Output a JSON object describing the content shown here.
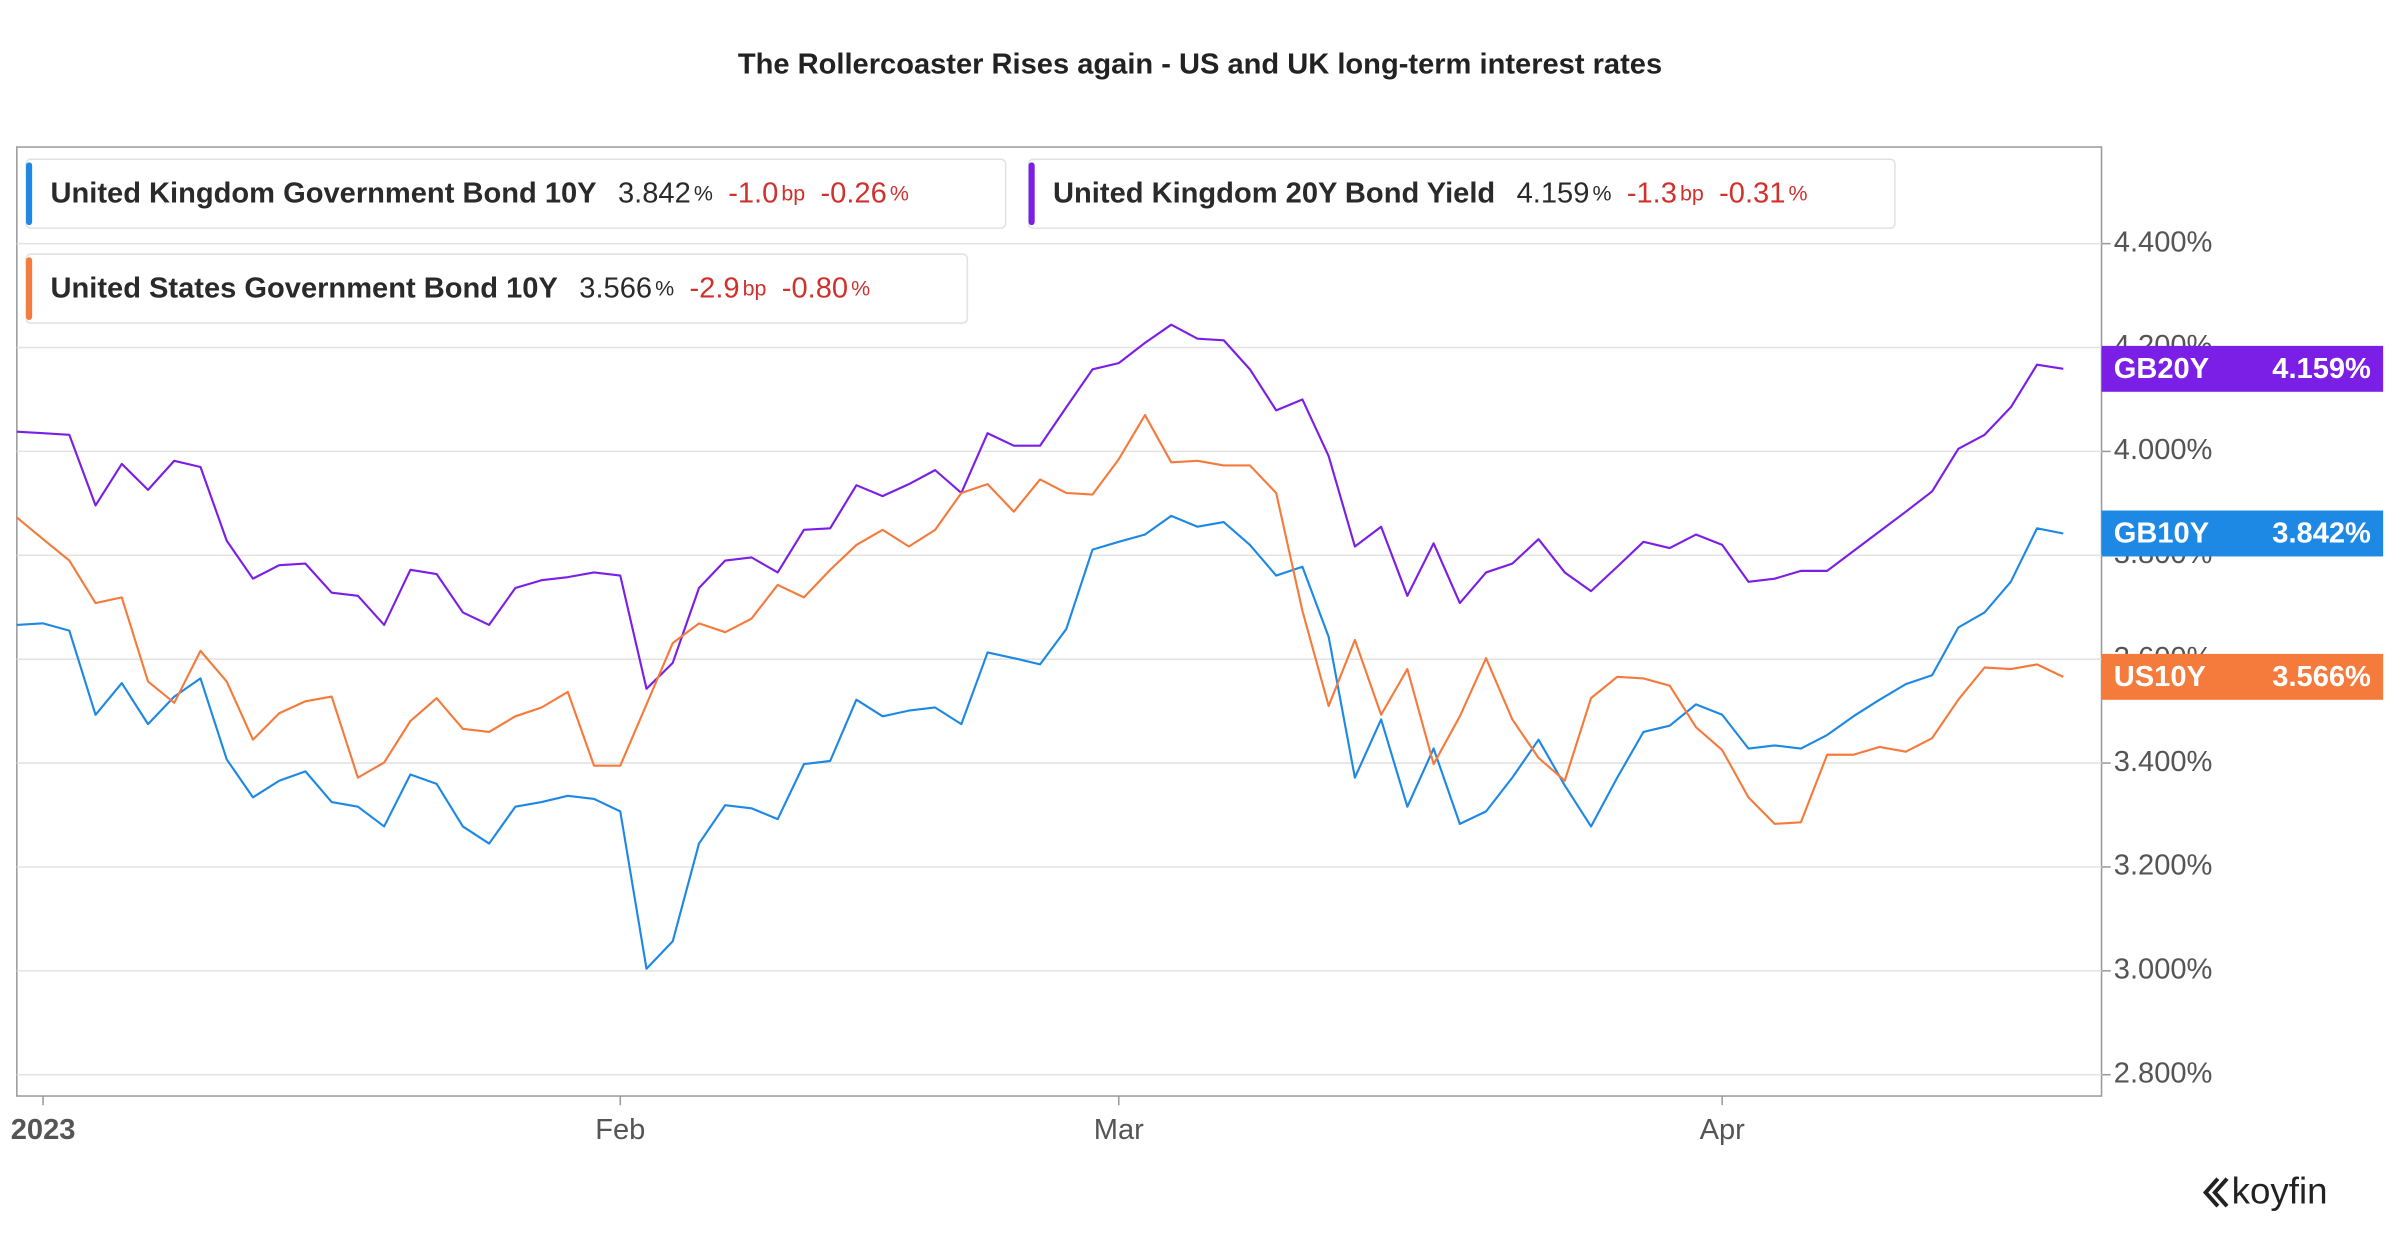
{
  "chart_data": {
    "type": "line",
    "title": "The Rollercoaster Rises again - US and UK long-term interest rates",
    "logo": "koyfin",
    "categories": [
      null,
      "2023",
      null,
      null,
      null,
      null,
      null,
      null,
      null,
      null,
      null,
      null,
      null,
      null,
      null,
      null,
      null,
      null,
      null,
      null,
      null,
      null,
      null,
      "Feb",
      null,
      null,
      null,
      null,
      null,
      null,
      null,
      null,
      null,
      null,
      null,
      null,
      null,
      null,
      null,
      null,
      null,
      null,
      "Mar",
      null,
      null,
      null,
      null,
      null,
      null,
      null,
      null,
      null,
      null,
      null,
      null,
      null,
      null,
      null,
      null,
      null,
      null,
      null,
      null,
      null,
      null,
      "Apr",
      null,
      null,
      null,
      null,
      null,
      null,
      null,
      null,
      null,
      null,
      null,
      null,
      null
    ],
    "ylim": [
      2.759,
      4.586
    ],
    "yticks": [
      {
        "value": 2.8,
        "label": "2.800%"
      },
      {
        "value": 3.0,
        "label": "3.000%"
      },
      {
        "value": 3.2,
        "label": "3.200%"
      },
      {
        "value": 3.4,
        "label": "3.400%"
      },
      {
        "value": 3.6,
        "label": "3.600%"
      },
      {
        "value": 3.8,
        "label": "3.800%"
      },
      {
        "value": 4.0,
        "label": "4.000%"
      },
      {
        "value": 4.2,
        "label": "4.200%"
      },
      {
        "value": 4.4,
        "label": "4.400%"
      }
    ],
    "grid": true,
    "series": [
      {
        "name": "United Kingdom Government Bond 10Y",
        "ticker": "GB10Y",
        "color": "#1e88e5",
        "last_label": "3.842%",
        "legend": {
          "last": "3.842",
          "last_unit": "%",
          "change": "-1.0",
          "change_unit": "bp",
          "change_pct": "-0.26",
          "change_pct_unit": "%"
        },
        "values": [
          3.666,
          3.669,
          3.655,
          3.493,
          3.554,
          3.475,
          3.528,
          3.563,
          3.407,
          3.334,
          3.366,
          3.384,
          3.325,
          3.316,
          3.278,
          3.378,
          3.36,
          3.278,
          3.245,
          3.316,
          3.325,
          3.337,
          3.331,
          3.307,
          3.004,
          3.057,
          3.245,
          3.319,
          3.313,
          3.292,
          3.398,
          3.404,
          3.522,
          3.49,
          3.501,
          3.507,
          3.475,
          3.613,
          3.602,
          3.59,
          3.658,
          3.811,
          3.826,
          3.84,
          3.876,
          3.855,
          3.864,
          3.82,
          3.761,
          3.778,
          3.643,
          3.372,
          3.484,
          3.316,
          3.428,
          3.283,
          3.307,
          3.372,
          3.445,
          3.357,
          3.278,
          3.372,
          3.46,
          3.472,
          3.513,
          3.493,
          3.428,
          3.434,
          3.428,
          3.454,
          3.49,
          3.522,
          3.552,
          3.569,
          3.661,
          3.69,
          3.749,
          3.852,
          3.842
        ]
      },
      {
        "name": "United Kingdom 20Y Bond Yield",
        "ticker": "GB20Y",
        "color": "#7b1fe6",
        "last_label": "4.159%",
        "legend": {
          "last": "4.159",
          "last_unit": "%",
          "change": "-1.3",
          "change_unit": "bp",
          "change_pct": "-0.31",
          "change_pct_unit": "%"
        },
        "values": [
          4.038,
          4.035,
          4.032,
          3.896,
          3.976,
          3.926,
          3.982,
          3.97,
          3.828,
          3.755,
          3.781,
          3.784,
          3.728,
          3.722,
          3.666,
          3.772,
          3.764,
          3.69,
          3.666,
          3.737,
          3.752,
          3.758,
          3.767,
          3.761,
          3.543,
          3.593,
          3.737,
          3.79,
          3.796,
          3.767,
          3.849,
          3.852,
          3.935,
          3.914,
          3.937,
          3.964,
          3.92,
          4.035,
          4.011,
          4.011,
          4.085,
          4.158,
          4.17,
          4.209,
          4.244,
          4.217,
          4.214,
          4.158,
          4.079,
          4.1,
          3.991,
          3.817,
          3.855,
          3.722,
          3.823,
          3.708,
          3.767,
          3.784,
          3.831,
          3.767,
          3.731,
          3.778,
          3.826,
          3.814,
          3.84,
          3.82,
          3.749,
          3.755,
          3.77,
          3.77,
          3.808,
          3.846,
          3.884,
          3.923,
          4.005,
          4.032,
          4.085,
          4.167,
          4.159
        ]
      },
      {
        "name": "United States Government Bond 10Y",
        "ticker": "US10Y",
        "color": "#f57b3c",
        "last_label": "3.566%",
        "legend": {
          "last": "3.566",
          "last_unit": "%",
          "change": "-2.9",
          "change_unit": "bp",
          "change_pct": "-0.80",
          "change_pct_unit": "%"
        },
        "values": [
          3.873,
          3.831,
          3.79,
          3.708,
          3.719,
          3.557,
          3.516,
          3.616,
          3.557,
          3.445,
          3.496,
          3.519,
          3.528,
          3.372,
          3.401,
          3.481,
          3.525,
          3.466,
          3.46,
          3.49,
          3.507,
          3.537,
          3.395,
          3.395,
          3.513,
          3.631,
          3.669,
          3.652,
          3.678,
          3.743,
          3.719,
          3.772,
          3.82,
          3.849,
          3.817,
          3.849,
          3.92,
          3.937,
          3.884,
          3.946,
          3.92,
          3.917,
          3.985,
          4.07,
          3.979,
          3.982,
          3.973,
          3.973,
          3.92,
          3.693,
          3.51,
          3.637,
          3.493,
          3.581,
          3.398,
          3.49,
          3.602,
          3.484,
          3.41,
          3.366,
          3.525,
          3.566,
          3.563,
          3.549,
          3.469,
          3.425,
          3.334,
          3.283,
          3.286,
          3.416,
          3.416,
          3.431,
          3.422,
          3.448,
          3.522,
          3.584,
          3.581,
          3.59,
          3.566
        ]
      }
    ]
  }
}
